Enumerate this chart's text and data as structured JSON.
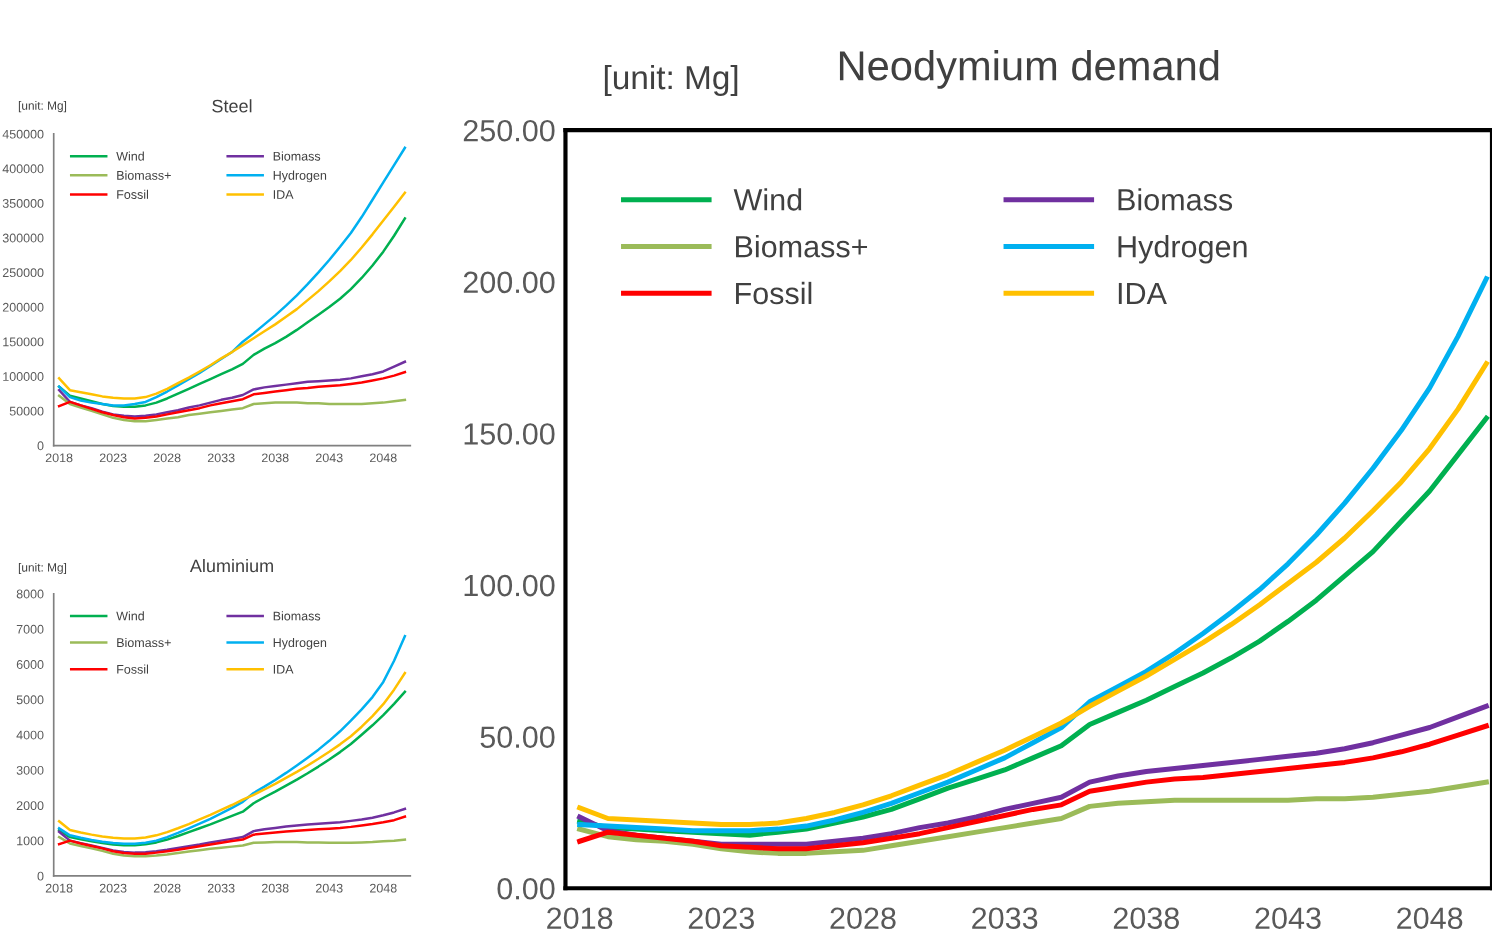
{
  "chart_data": [
    {
      "type": "line",
      "title": "Steel",
      "ylabel": "[unit: Mg]",
      "legend": "top left",
      "grid": false,
      "marker": "none",
      "line_style": "solid",
      "x": [
        2018,
        2019,
        2020,
        2021,
        2022,
        2023,
        2024,
        2025,
        2026,
        2027,
        2028,
        2029,
        2030,
        2031,
        2032,
        2033,
        2034,
        2035,
        2036,
        2037,
        2038,
        2039,
        2040,
        2041,
        2042,
        2043,
        2044,
        2045,
        2046,
        2047,
        2048,
        2049,
        2050
      ],
      "xlim": [
        2017.5,
        2050.5
      ],
      "xticks": [
        2018,
        2023,
        2028,
        2033,
        2038,
        2043,
        2048
      ],
      "ylim": [
        0,
        450000
      ],
      "yticks": [
        0,
        50000,
        100000,
        150000,
        200000,
        250000,
        300000,
        350000,
        400000,
        450000
      ],
      "series": [
        {
          "name": "Wind",
          "color": "#00b050",
          "values": [
            85000,
            72000,
            68000,
            64000,
            60000,
            57000,
            56000,
            56000,
            58000,
            62000,
            68000,
            75000,
            82000,
            89000,
            96000,
            103000,
            110000,
            118000,
            131000,
            140000,
            148000,
            157000,
            167000,
            178000,
            189000,
            200000,
            212000,
            226000,
            242000,
            260000,
            280000,
            303000,
            328000
          ]
        },
        {
          "name": "Biomass",
          "color": "#7030a0",
          "values": [
            80000,
            63000,
            58000,
            54000,
            49000,
            45000,
            43000,
            42000,
            43000,
            45000,
            48000,
            51000,
            55000,
            58000,
            62000,
            66000,
            69000,
            73000,
            81000,
            84000,
            86000,
            88000,
            90000,
            92000,
            93000,
            94000,
            95000,
            97000,
            100000,
            103000,
            107000,
            114000,
            121000
          ]
        },
        {
          "name": "Biomass+",
          "color": "#9bbb59",
          "values": [
            72000,
            60000,
            55000,
            50000,
            45000,
            40000,
            37000,
            35000,
            35000,
            37000,
            39000,
            41000,
            44000,
            46000,
            48000,
            50000,
            52000,
            54000,
            60000,
            61000,
            62000,
            62000,
            62000,
            61000,
            61000,
            60000,
            60000,
            60000,
            60000,
            61000,
            62000,
            64000,
            66000
          ]
        },
        {
          "name": "Hydrogen",
          "color": "#00b0f0",
          "values": [
            85000,
            70000,
            65000,
            62000,
            60000,
            58000,
            58000,
            60000,
            63000,
            70000,
            78000,
            87000,
            96000,
            105000,
            115000,
            125000,
            135000,
            150000,
            162000,
            175000,
            188000,
            202000,
            217000,
            233000,
            250000,
            268000,
            287000,
            307000,
            330000,
            355000,
            380000,
            405000,
            430000
          ]
        },
        {
          "name": "Fossil",
          "color": "#ff0000",
          "values": [
            57000,
            63000,
            58000,
            53000,
            48000,
            44000,
            41000,
            39000,
            40000,
            42000,
            45000,
            48000,
            51000,
            54000,
            58000,
            61000,
            64000,
            67000,
            74000,
            76000,
            78000,
            80000,
            82000,
            83000,
            85000,
            86000,
            87000,
            89000,
            91000,
            94000,
            97000,
            101000,
            106000
          ]
        },
        {
          "name": "IDA",
          "color": "#ffc000",
          "values": [
            97000,
            80000,
            77000,
            74000,
            71000,
            69000,
            68000,
            68000,
            70000,
            75000,
            82000,
            90000,
            98000,
            107000,
            116000,
            126000,
            135000,
            145000,
            155000,
            165000,
            175000,
            186000,
            197000,
            210000,
            223000,
            237000,
            252000,
            268000,
            286000,
            305000,
            325000,
            345000,
            365000
          ]
        }
      ]
    },
    {
      "type": "line",
      "title": "Aluminium",
      "ylabel": "[unit: Mg]",
      "legend": "top left",
      "grid": false,
      "marker": "none",
      "line_style": "solid",
      "x": [
        2018,
        2019,
        2020,
        2021,
        2022,
        2023,
        2024,
        2025,
        2026,
        2027,
        2028,
        2029,
        2030,
        2031,
        2032,
        2033,
        2034,
        2035,
        2036,
        2037,
        2038,
        2039,
        2040,
        2041,
        2042,
        2043,
        2044,
        2045,
        2046,
        2047,
        2048,
        2049,
        2050
      ],
      "xlim": [
        2017.5,
        2050.5
      ],
      "xticks": [
        2018,
        2023,
        2028,
        2033,
        2038,
        2043,
        2048
      ],
      "ylim": [
        0,
        8000
      ],
      "yticks": [
        0,
        1000,
        2000,
        3000,
        4000,
        5000,
        6000,
        7000,
        8000
      ],
      "series": [
        {
          "name": "Wind",
          "color": "#00b050",
          "values": [
            1300,
            1100,
            1040,
            980,
            930,
            890,
            870,
            870,
            900,
            950,
            1030,
            1130,
            1240,
            1350,
            1460,
            1580,
            1700,
            1820,
            2060,
            2230,
            2390,
            2560,
            2730,
            2910,
            3100,
            3300,
            3510,
            3740,
            4000,
            4270,
            4560,
            4880,
            5220
          ]
        },
        {
          "name": "Biomass",
          "color": "#7030a0",
          "values": [
            1250,
            1000,
            930,
            860,
            790,
            720,
            680,
            660,
            670,
            700,
            740,
            790,
            840,
            890,
            950,
            1000,
            1050,
            1100,
            1270,
            1320,
            1360,
            1400,
            1430,
            1460,
            1480,
            1500,
            1520,
            1560,
            1600,
            1650,
            1720,
            1800,
            1900
          ]
        },
        {
          "name": "Biomass+",
          "color": "#9bbb59",
          "values": [
            1100,
            920,
            850,
            780,
            710,
            630,
            580,
            560,
            560,
            580,
            610,
            650,
            690,
            730,
            770,
            800,
            830,
            860,
            940,
            950,
            960,
            960,
            960,
            950,
            950,
            940,
            940,
            940,
            950,
            960,
            980,
            1000,
            1030
          ]
        },
        {
          "name": "Hydrogen",
          "color": "#00b0f0",
          "values": [
            1350,
            1150,
            1080,
            1020,
            970,
            930,
            910,
            910,
            940,
            1000,
            1100,
            1220,
            1350,
            1480,
            1620,
            1770,
            1930,
            2100,
            2350,
            2530,
            2720,
            2920,
            3130,
            3350,
            3580,
            3830,
            4100,
            4400,
            4720,
            5070,
            5500,
            6100,
            6800
          ]
        },
        {
          "name": "Fossil",
          "color": "#ff0000",
          "values": [
            900,
            1000,
            920,
            850,
            780,
            700,
            650,
            630,
            630,
            660,
            700,
            740,
            790,
            840,
            890,
            940,
            990,
            1030,
            1170,
            1200,
            1230,
            1260,
            1280,
            1300,
            1320,
            1340,
            1360,
            1390,
            1430,
            1470,
            1520,
            1580,
            1680
          ]
        },
        {
          "name": "IDA",
          "color": "#ffc000",
          "values": [
            1550,
            1300,
            1230,
            1170,
            1120,
            1080,
            1060,
            1060,
            1090,
            1150,
            1240,
            1350,
            1470,
            1600,
            1730,
            1870,
            2010,
            2160,
            2300,
            2450,
            2610,
            2780,
            2950,
            3130,
            3320,
            3520,
            3730,
            3960,
            4230,
            4530,
            4870,
            5280,
            5750
          ]
        }
      ]
    },
    {
      "type": "line",
      "title": "Neodymium demand",
      "ylabel": "[unit: Mg]",
      "legend": "top left",
      "grid": false,
      "marker": "none",
      "line_style": "solid",
      "x": [
        2018,
        2019,
        2020,
        2021,
        2022,
        2023,
        2024,
        2025,
        2026,
        2027,
        2028,
        2029,
        2030,
        2031,
        2032,
        2033,
        2034,
        2035,
        2036,
        2037,
        2038,
        2039,
        2040,
        2041,
        2042,
        2043,
        2044,
        2045,
        2046,
        2047,
        2048,
        2049,
        2050
      ],
      "xlim": [
        2017.5,
        2050.2
      ],
      "xticks": [
        2018,
        2023,
        2028,
        2033,
        2038,
        2043,
        2048
      ],
      "ylim": [
        0,
        250
      ],
      "yticks": [
        {
          "value": 0,
          "label": "0.00"
        },
        {
          "value": 50,
          "label": "50.00"
        },
        {
          "value": 100,
          "label": "100.00"
        },
        {
          "value": 150,
          "label": "150.00"
        },
        {
          "value": 200,
          "label": "200.00"
        },
        {
          "value": 250,
          "label": "250.00"
        }
      ],
      "series": [
        {
          "name": "Wind",
          "color": "#00b050",
          "values": [
            22,
            20,
            19.5,
            19,
            18.5,
            18,
            17.5,
            18.5,
            19.5,
            21.5,
            23.5,
            26,
            29.5,
            33,
            36,
            39,
            43,
            47,
            54,
            58,
            62,
            66.5,
            71,
            76,
            81.5,
            88,
            95,
            103,
            111,
            121,
            131,
            143,
            155
          ]
        },
        {
          "name": "Biomass",
          "color": "#7030a0",
          "values": [
            23.5,
            19,
            17.5,
            16.5,
            15.5,
            14.5,
            14.5,
            14.5,
            14.5,
            15.5,
            16.5,
            18,
            20,
            21.5,
            23.5,
            26,
            28,
            30,
            35,
            37,
            38.5,
            39.5,
            40.5,
            41.5,
            42.5,
            43.5,
            44.5,
            46,
            48,
            50.5,
            53,
            56.5,
            60
          ]
        },
        {
          "name": "Biomass+",
          "color": "#9bbb59",
          "values": [
            19.5,
            17,
            16,
            15.5,
            14.5,
            13,
            12,
            11.5,
            11.5,
            12,
            12.5,
            14,
            15.5,
            17,
            18.5,
            20,
            21.5,
            23,
            27,
            28,
            28.5,
            29,
            29,
            29,
            29,
            29,
            29.5,
            29.5,
            30,
            31,
            32,
            33.5,
            35
          ]
        },
        {
          "name": "Hydrogen",
          "color": "#00b0f0",
          "values": [
            21,
            20.5,
            20,
            19.5,
            19,
            19,
            19,
            19.5,
            20.5,
            22.5,
            25,
            28,
            31.5,
            35,
            39,
            43,
            48,
            53,
            61.5,
            66.5,
            71.5,
            77.5,
            84,
            91,
            98.5,
            107,
            116.5,
            127,
            138.5,
            151,
            165,
            182,
            201
          ]
        },
        {
          "name": "Fossil",
          "color": "#ff0000",
          "values": [
            15.5,
            18.5,
            17.5,
            16.5,
            15.5,
            14,
            13.5,
            13,
            13,
            14,
            15,
            16.5,
            18,
            20,
            22,
            24,
            26,
            27.5,
            32,
            33.5,
            35,
            36,
            36.5,
            37.5,
            38.5,
            39.5,
            40.5,
            41.5,
            43,
            45,
            47.5,
            50.5,
            53.5
          ]
        },
        {
          "name": "IDA",
          "color": "#ffc000",
          "values": [
            26.5,
            23,
            22.5,
            22,
            21.5,
            21,
            21,
            21.5,
            23,
            25,
            27.5,
            30.5,
            34,
            37.5,
            41.5,
            45.5,
            50,
            54.5,
            60,
            65,
            70,
            75.5,
            81,
            87,
            93.5,
            100.5,
            107.5,
            115.5,
            124.5,
            134,
            145,
            158,
            173
          ]
        }
      ]
    }
  ]
}
